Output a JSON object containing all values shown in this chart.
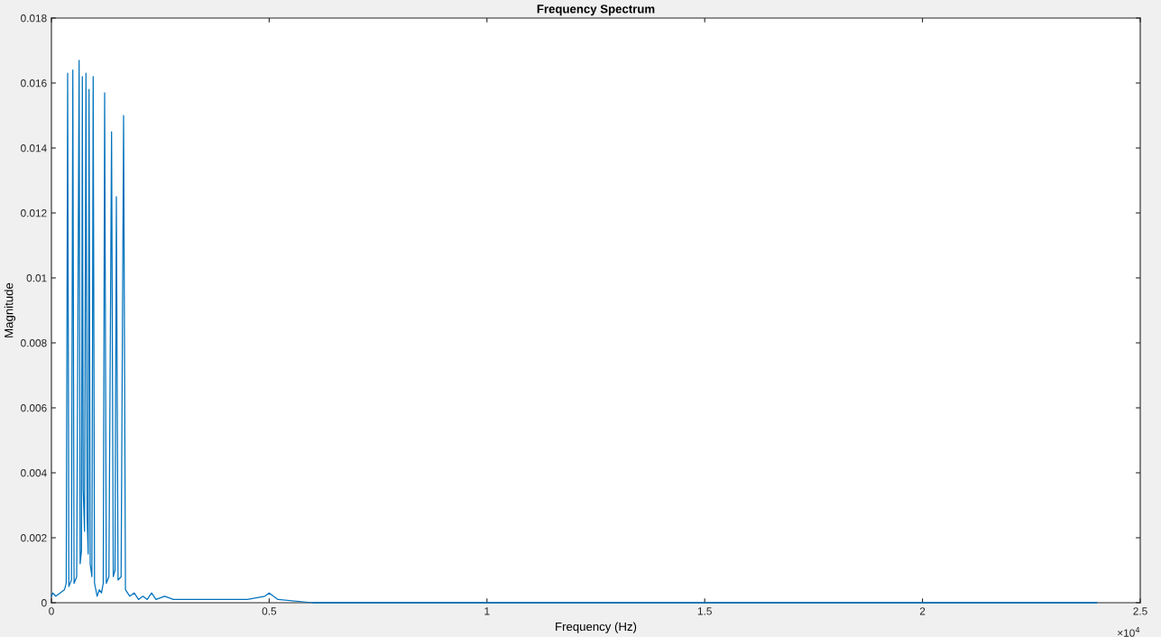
{
  "chart_data": {
    "type": "line",
    "title": "Frequency Spectrum",
    "xlabel": "Frequency (Hz)",
    "ylabel": "Magnitude",
    "x": [
      0,
      0.003,
      0.01,
      0.02,
      0.03,
      0.034,
      0.0373,
      0.04,
      0.046,
      0.0491,
      0.052,
      0.058,
      0.0636,
      0.066,
      0.069,
      0.071,
      0.073,
      0.076,
      0.0793,
      0.082,
      0.0845,
      0.0864,
      0.089,
      0.093,
      0.0959,
      0.099,
      0.105,
      0.11,
      0.115,
      0.119,
      0.1222,
      0.126,
      0.132,
      0.1381,
      0.142,
      0.146,
      0.1491,
      0.153,
      0.16,
      0.1657,
      0.17,
      0.18,
      0.19,
      0.2,
      0.21,
      0.22,
      0.23,
      0.24,
      0.26,
      0.28,
      0.3,
      0.33,
      0.36,
      0.4,
      0.45,
      0.49,
      0.5,
      0.52,
      0.6,
      0.7,
      0.8,
      0.9,
      1.0,
      1.5,
      2.0,
      2.4
    ],
    "series": [
      {
        "color": "#0072bd",
        "values": [
          0.0002,
          0.0003,
          0.0002,
          0.0003,
          0.0004,
          0.0006,
          0.0163,
          0.0005,
          0.0007,
          0.0164,
          0.0006,
          0.0008,
          0.0167,
          0.0012,
          0.0016,
          0.0162,
          0.0035,
          0.0022,
          0.0163,
          0.0026,
          0.0015,
          0.0158,
          0.0012,
          0.0008,
          0.0162,
          0.0006,
          0.0002,
          0.0004,
          0.0003,
          0.0006,
          0.0157,
          0.0006,
          0.0008,
          0.0145,
          0.0008,
          0.001,
          0.0125,
          0.0007,
          0.0008,
          0.015,
          0.0004,
          0.0002,
          0.0003,
          0.0001,
          0.0002,
          0.0001,
          0.0003,
          0.0001,
          0.0002,
          0.0001,
          0.0001,
          0.0001,
          0.0001,
          0.0001,
          0.0001,
          0.0002,
          0.0003,
          0.0001,
          0.0,
          0.0,
          0.0,
          0.0,
          0.0,
          0.0,
          0.0,
          0.0
        ]
      }
    ],
    "xlim": [
      0,
      2.5
    ],
    "ylim": [
      0,
      0.018
    ],
    "xticks": [
      0,
      0.5,
      1,
      1.5,
      2,
      2.5
    ],
    "yticks": [
      0,
      0.002,
      0.004,
      0.006,
      0.008,
      0.01,
      0.012,
      0.014,
      0.016,
      0.018
    ],
    "annotations": [
      "×10$^{4}$"
    ],
    "grid": false,
    "legend": false
  }
}
